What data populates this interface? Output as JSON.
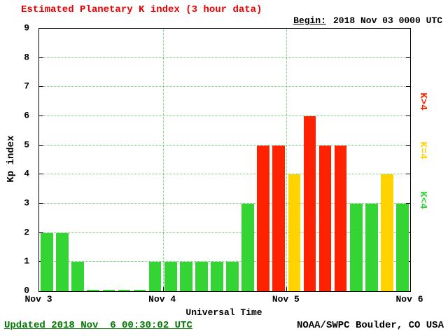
{
  "header": {
    "title": "Estimated Planetary K index (3 hour data)",
    "begin_label": "Begin:",
    "begin_value": "2018 Nov 03 0000 UTC"
  },
  "chart_data": {
    "type": "bar",
    "title": "Estimated Planetary K index (3 hour data)",
    "xlabel": "Universal Time",
    "ylabel": "Kp index",
    "ylim": [
      0,
      9
    ],
    "y_ticks": [
      0,
      1,
      2,
      3,
      4,
      5,
      6,
      7,
      8,
      9
    ],
    "x_tick_labels": [
      "Nov 3",
      "Nov 4",
      "Nov 5",
      "Nov 6"
    ],
    "interval_hours": 3,
    "begin_utc": "2018 Nov 03 0000 UTC",
    "values": [
      2,
      2,
      1,
      0,
      0,
      0,
      0,
      1,
      1,
      1,
      1,
      1,
      1,
      3,
      5,
      5,
      4,
      6,
      5,
      5,
      3,
      3,
      4,
      3
    ],
    "color_rules": {
      "below_4": "#33d433",
      "equal_4": "#ffd300",
      "above_4": "#ff2200"
    },
    "legend": [
      {
        "label": "K>4",
        "color": "#ff2200"
      },
      {
        "label": "K=4",
        "color": "#ffd300"
      },
      {
        "label": "K<4",
        "color": "#33d433"
      }
    ],
    "grid": true,
    "legend_position": "right"
  },
  "footer": {
    "updated": "Updated 2018 Nov  6 00:30:02 UTC",
    "source": "NOAA/SWPC Boulder, CO USA"
  }
}
